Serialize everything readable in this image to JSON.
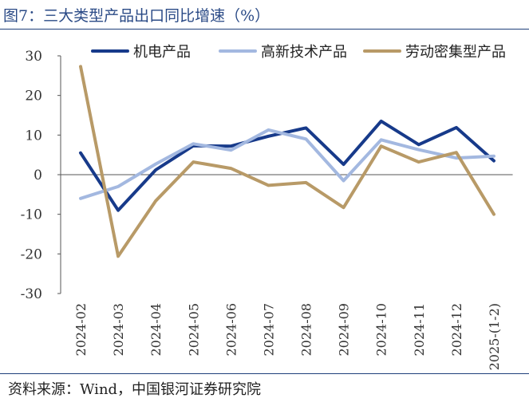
{
  "header": {
    "title": "图7：三大类型产品出口同比增速（%）"
  },
  "footer": {
    "source": "资料来源：Wind，中国银河证券研究院"
  },
  "chart_data": {
    "type": "line",
    "title": "图7：三大类型产品出口同比增速（%）",
    "xlabel": "",
    "ylabel": "",
    "categories": [
      "2024-02",
      "2024-03",
      "2024-04",
      "2024-05",
      "2024-06",
      "2024-07",
      "2024-08",
      "2024-09",
      "2024-10",
      "2024-11",
      "2024-12",
      "2025-(1-2)"
    ],
    "ylim": [
      -30,
      30
    ],
    "yticks": [
      -30,
      -20,
      -10,
      0,
      10,
      20,
      30
    ],
    "grid": false,
    "legend": "top",
    "series": [
      {
        "name": "机电产品",
        "color": "#173a8a",
        "values": [
          5.5,
          -9.0,
          1.2,
          7.3,
          7.2,
          9.7,
          11.8,
          2.6,
          13.5,
          7.6,
          11.9,
          3.5
        ]
      },
      {
        "name": "高新技术产品",
        "color": "#a3b8e0",
        "values": [
          -6.0,
          -3.0,
          2.7,
          7.8,
          6.2,
          11.3,
          9.0,
          -1.5,
          8.8,
          6.3,
          4.2,
          4.7
        ]
      },
      {
        "name": "劳动密集型产品",
        "color": "#b89a67",
        "values": [
          27.3,
          -20.6,
          -6.6,
          3.2,
          1.6,
          -2.7,
          -2.0,
          -8.3,
          7.2,
          3.2,
          5.6,
          -10.0
        ]
      }
    ]
  }
}
